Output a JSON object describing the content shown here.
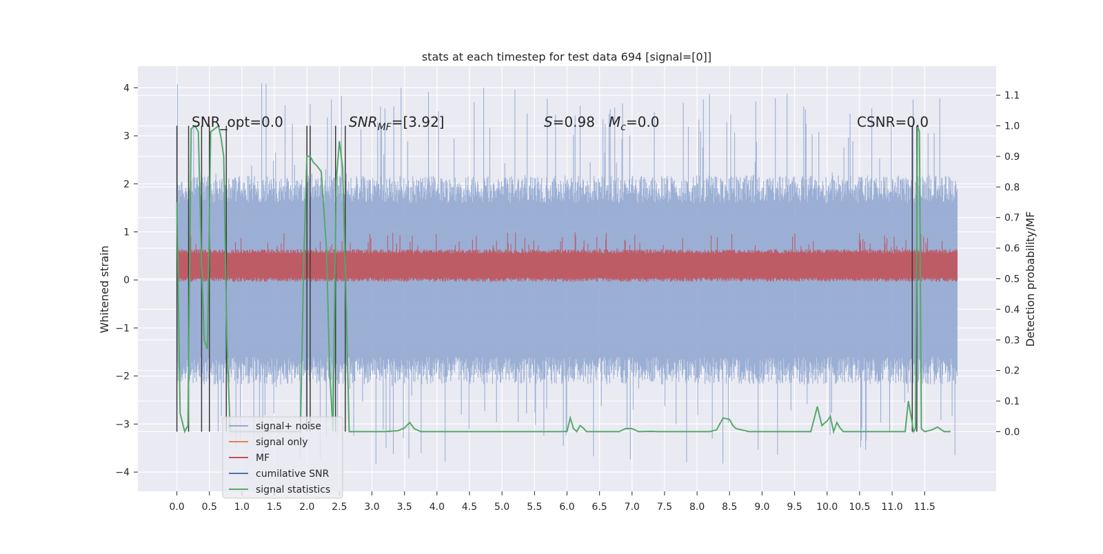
{
  "chart_data": {
    "type": "line",
    "title": "stats at each timestep for test data 694 [signal=[0]]",
    "xlabel": "",
    "ylabel": "Whitened strain",
    "ylabel_right": "Detection probability/MF",
    "xlim": [
      -0.6,
      12.6
    ],
    "ylim": [
      -4.4,
      4.45
    ],
    "ylim_right": [
      -0.195,
      1.195
    ],
    "x_ticks": [
      0.0,
      0.5,
      1.0,
      1.5,
      2.0,
      2.5,
      3.0,
      3.5,
      4.0,
      4.5,
      5.0,
      5.5,
      6.0,
      6.5,
      7.0,
      7.5,
      8.0,
      8.5,
      9.0,
      9.5,
      10.0,
      10.5,
      11.0,
      11.5
    ],
    "x_tick_labels": [
      "0.0",
      "0.5",
      "1.0",
      "1.5",
      "2.0",
      "2.5",
      "3.0",
      "3.5",
      "4.0",
      "4.5",
      "5.0",
      "5.5",
      "6.0",
      "6.5",
      "7.0",
      "7.5",
      "8.0",
      "8.5",
      "9.0",
      "9.5",
      "10.0",
      "10.5",
      "11.0",
      "11.5"
    ],
    "y_ticks": [
      -4,
      -3,
      -2,
      -1,
      0,
      1,
      2,
      3,
      4
    ],
    "y_tick_labels": [
      "−4",
      "−3",
      "−2",
      "−1",
      "0",
      "1",
      "2",
      "3",
      "4"
    ],
    "y_ticks_right": [
      0.0,
      0.1,
      0.2,
      0.3,
      0.4,
      0.5,
      0.6,
      0.7,
      0.8,
      0.9,
      1.0,
      1.1
    ],
    "y_tick_labels_right": [
      "0.0",
      "0.1",
      "0.2",
      "0.3",
      "0.4",
      "0.5",
      "0.6",
      "0.7",
      "0.8",
      "0.9",
      "1.0",
      "1.1"
    ],
    "grid": true,
    "legend_position": "lower-left",
    "annotations": [
      "SNR_opt=0.0",
      "SNR_MF=[3.92]",
      "S=0.98   M_c=0.0",
      "CSNR=0.0"
    ],
    "legend": [
      {
        "label": "signal+ noise",
        "color": "#92a8d1"
      },
      {
        "label": "signal only",
        "color": "#dd8452"
      },
      {
        "label": "MF",
        "color": "#c44e52"
      },
      {
        "label": "cumilative SNR",
        "color": "#4c72b0"
      },
      {
        "label": "signal statistics",
        "color": "#55a868"
      }
    ],
    "series": [
      {
        "name": "signal+ noise",
        "axis": "left",
        "color": "#92a8d1",
        "x_range": [
          0.0,
          12.0
        ],
        "envelope_typical": [
          -1.6,
          1.6
        ],
        "envelope_extreme": [
          -3.85,
          4.1
        ],
        "style": "dense band"
      },
      {
        "name": "MF",
        "axis": "left",
        "color": "#c44e52",
        "x_range": [
          0.0,
          12.0
        ],
        "envelope_typical": [
          0.05,
          0.55
        ],
        "envelope_extreme": [
          0.0,
          1.0
        ],
        "style": "dense band"
      },
      {
        "name": "signal statistics",
        "axis": "right",
        "color": "#55a868",
        "x": [
          0.0,
          0.05,
          0.12,
          0.17,
          0.22,
          0.28,
          0.33,
          0.38,
          0.42,
          0.47,
          0.52,
          0.58,
          0.64,
          0.68,
          0.72,
          0.77,
          0.82,
          0.9,
          1.0,
          1.2,
          1.4,
          1.6,
          1.8,
          1.9,
          1.95,
          2.0,
          2.05,
          2.1,
          2.15,
          2.22,
          2.3,
          2.35,
          2.4,
          2.45,
          2.5,
          2.55,
          2.6,
          2.65,
          2.7,
          2.8,
          3.0,
          3.2,
          3.4,
          3.5,
          3.58,
          3.65,
          3.75,
          3.9,
          4.2,
          5.0,
          5.5,
          5.9,
          6.0,
          6.05,
          6.1,
          6.15,
          6.2,
          6.25,
          6.3,
          6.4,
          6.8,
          6.9,
          7.0,
          7.1,
          7.3,
          7.4,
          7.5,
          8.2,
          8.3,
          8.4,
          8.5,
          8.55,
          8.6,
          8.8,
          9.2,
          9.5,
          9.75,
          9.85,
          9.92,
          10.0,
          10.05,
          10.1,
          10.15,
          10.2,
          10.25,
          10.3,
          10.35,
          10.6,
          10.8,
          11.0,
          11.1,
          11.2,
          11.25,
          11.3,
          11.33,
          11.36,
          11.39,
          11.42,
          11.45,
          11.5,
          11.6,
          11.65,
          11.7,
          11.8,
          11.9
        ],
        "y": [
          0.75,
          0.06,
          0.0,
          0.02,
          0.99,
          1.0,
          0.98,
          0.55,
          0.3,
          0.27,
          0.98,
          0.99,
          1.0,
          0.96,
          0.9,
          0.3,
          0.0,
          0.0,
          0.0,
          0.0,
          0.0,
          0.0,
          0.0,
          0.0,
          0.55,
          0.9,
          0.9,
          0.88,
          0.87,
          0.85,
          0.6,
          0.2,
          0.0,
          0.82,
          0.95,
          0.86,
          0.45,
          0.0,
          0.0,
          0.0,
          0.0,
          0.0,
          0.003,
          0.012,
          0.03,
          0.01,
          0.0,
          0.0,
          0.0,
          0.0,
          0.0,
          0.0,
          0.001,
          0.045,
          0.01,
          0.0,
          0.02,
          0.012,
          0.0,
          0.0,
          0.0,
          0.01,
          0.01,
          0.0,
          0.001,
          0.0,
          0.0,
          0.0,
          0.006,
          0.045,
          0.04,
          0.02,
          0.01,
          0.0,
          0.0,
          0.0,
          0.0,
          0.082,
          0.02,
          0.035,
          0.05,
          0.0,
          0.03,
          0.012,
          0.0,
          0.0,
          0.0,
          0.0,
          0.0,
          0.0,
          0.0,
          0.0,
          0.1,
          0.04,
          0.0,
          0.01,
          1.0,
          0.98,
          0.01,
          0.0,
          0.005,
          0.01,
          0.015,
          0.0,
          0.0
        ]
      }
    ],
    "vertical_markers": [
      0.0,
      0.18,
      0.38,
      0.5,
      0.76,
      2.0,
      2.05,
      2.44,
      2.59,
      11.31,
      11.38
    ]
  }
}
